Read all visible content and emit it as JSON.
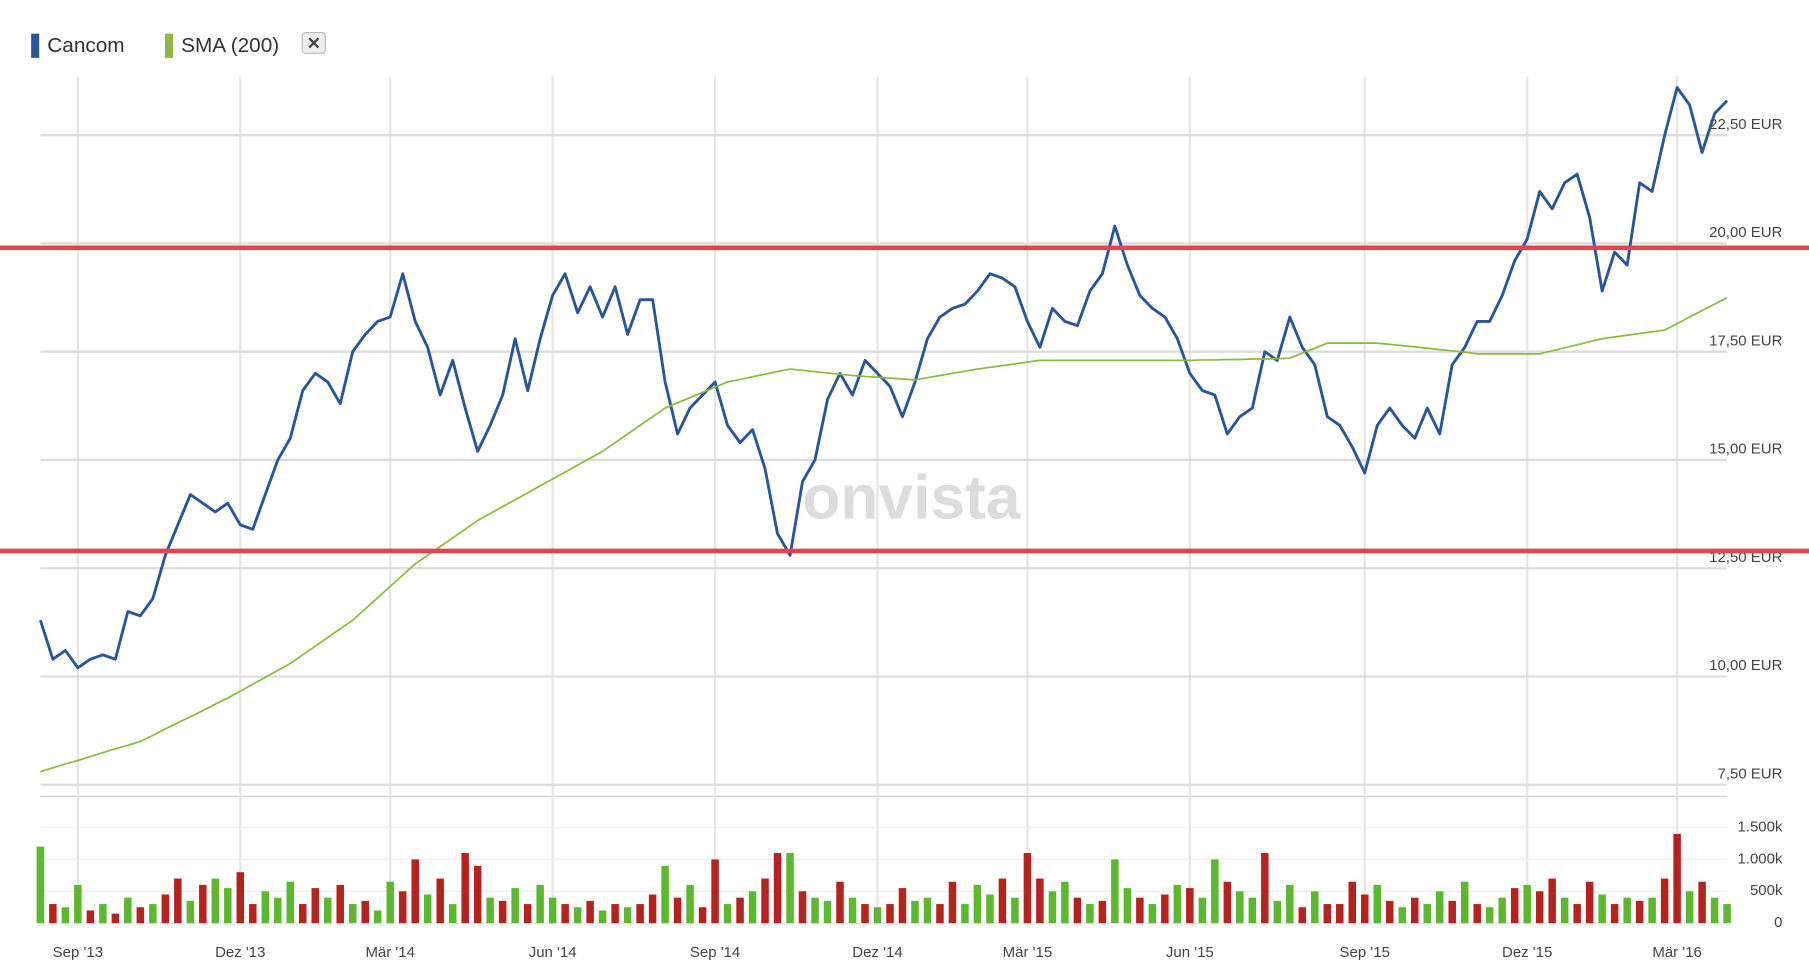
{
  "chart_data": [
    {
      "type": "line",
      "categories": [
        null,
        null,
        null,
        "Sep '13",
        null,
        null,
        null,
        null,
        null,
        null,
        null,
        null,
        null,
        null,
        null,
        null,
        "Dez '13",
        null,
        null,
        null,
        null,
        null,
        null,
        null,
        null,
        null,
        null,
        null,
        "Mär '14",
        null,
        null,
        null,
        null,
        null,
        null,
        null,
        null,
        null,
        null,
        null,
        null,
        "Jun '14",
        null,
        null,
        null,
        null,
        null,
        null,
        null,
        null,
        null,
        null,
        null,
        null,
        "Sep '14",
        null,
        null,
        null,
        null,
        null,
        null,
        null,
        null,
        null,
        null,
        null,
        null,
        "Dez '14",
        null,
        null,
        null,
        null,
        null,
        null,
        null,
        null,
        null,
        null,
        null,
        "Mär '15",
        null,
        null,
        null,
        null,
        null,
        null,
        null,
        null,
        null,
        null,
        null,
        null,
        "Jun '15",
        null,
        null,
        null,
        null,
        null,
        null,
        null,
        null,
        null,
        null,
        null,
        null,
        null,
        "Sep '15",
        null,
        null,
        null,
        null,
        null,
        null,
        null,
        null,
        null,
        null,
        null,
        null,
        "Dez '15",
        null,
        null,
        null,
        null,
        null,
        null,
        null,
        null,
        null,
        null,
        null,
        "Mär '16",
        null,
        null,
        null,
        null
      ],
      "series": [
        {
          "name": "Cancom",
          "color": "#2a5597",
          "values": [
            11.3,
            10.4,
            10.6,
            10.2,
            10.4,
            10.5,
            10.4,
            11.5,
            11.4,
            11.8,
            12.8,
            13.5,
            14.2,
            14.0,
            13.8,
            14.0,
            13.5,
            13.4,
            14.2,
            15.0,
            15.5,
            16.6,
            17.0,
            16.8,
            16.3,
            17.5,
            17.9,
            18.2,
            18.3,
            19.3,
            18.2,
            17.6,
            16.5,
            17.3,
            16.2,
            15.2,
            15.8,
            16.5,
            17.8,
            16.6,
            17.8,
            18.8,
            19.3,
            18.4,
            19.0,
            18.3,
            19.0,
            17.9,
            18.7,
            18.7,
            16.8,
            15.6,
            16.2,
            16.5,
            16.8,
            15.8,
            15.4,
            15.7,
            14.8,
            13.3,
            12.8,
            14.5,
            15.0,
            16.4,
            17.0,
            16.5,
            17.3,
            17.0,
            16.7,
            16.0,
            16.8,
            17.8,
            18.3,
            18.5,
            18.6,
            18.9,
            19.3,
            19.2,
            19.0,
            18.2,
            17.6,
            18.5,
            18.2,
            18.1,
            18.9,
            19.3,
            20.4,
            19.5,
            18.8,
            18.5,
            18.3,
            17.8,
            17.0,
            16.6,
            16.5,
            15.6,
            16.0,
            16.2,
            17.5,
            17.3,
            18.3,
            17.6,
            17.2,
            16.0,
            15.8,
            15.3,
            14.7,
            15.8,
            16.2,
            15.8,
            15.5,
            16.2,
            15.6,
            17.2,
            17.6,
            18.2,
            18.2,
            18.8,
            19.6,
            20.1,
            21.2,
            20.8,
            21.4,
            21.6,
            20.6,
            18.9,
            19.8,
            19.5,
            21.4,
            21.2,
            22.5,
            23.6,
            23.2,
            22.1,
            23.0,
            23.3
          ]
        },
        {
          "name": "SMA (200)",
          "color": "#8cba3f",
          "values": [
            7.8,
            7.89,
            7.98,
            8.06,
            8.15,
            8.24,
            8.33,
            8.41,
            8.5,
            8.64,
            8.79,
            8.93,
            9.07,
            9.21,
            9.36,
            9.5,
            9.66,
            9.82,
            9.98,
            10.14,
            10.3,
            10.5,
            10.7,
            10.9,
            11.1,
            11.3,
            11.56,
            11.82,
            12.08,
            12.34,
            12.6,
            12.8,
            13.0,
            13.2,
            13.4,
            13.6,
            13.76,
            13.92,
            14.08,
            14.24,
            14.4,
            14.56,
            14.72,
            14.88,
            15.04,
            15.2,
            15.4,
            15.6,
            15.8,
            16.0,
            16.2,
            16.32,
            16.44,
            16.56,
            16.68,
            16.8,
            16.86,
            16.92,
            16.98,
            17.04,
            17.1,
            17.07,
            17.04,
            17.01,
            16.98,
            16.95,
            16.93,
            16.91,
            16.89,
            16.87,
            16.85,
            16.9,
            16.95,
            17.0,
            17.05,
            17.1,
            17.14,
            17.18,
            17.22,
            17.26,
            17.3,
            17.3,
            17.3,
            17.3,
            17.3,
            17.3,
            17.3,
            17.3,
            17.3,
            17.3,
            17.3,
            17.3,
            17.3,
            17.31,
            17.31,
            17.32,
            17.32,
            17.33,
            17.33,
            17.34,
            17.35,
            17.47,
            17.58,
            17.7,
            17.7,
            17.7,
            17.7,
            17.7,
            17.67,
            17.64,
            17.61,
            17.58,
            17.55,
            17.52,
            17.49,
            17.45,
            17.45,
            17.45,
            17.45,
            17.45,
            17.45,
            17.52,
            17.59,
            17.66,
            17.73,
            17.8,
            17.84,
            17.88,
            17.92,
            17.96,
            18.0,
            18.15,
            18.3,
            18.45,
            18.6,
            18.75
          ]
        }
      ],
      "ylim": [
        7.5,
        24
      ],
      "yticks": [
        {
          "value": 7.5,
          "label": "7,50 EUR"
        },
        {
          "value": 10,
          "label": "10,00 EUR"
        },
        {
          "value": 12.5,
          "label": "12,50 EUR"
        },
        {
          "value": 15,
          "label": "15,00 EUR"
        },
        {
          "value": 17.5,
          "label": "17,50 EUR"
        },
        {
          "value": 20,
          "label": "20,00 EUR"
        },
        {
          "value": 22.5,
          "label": "22,50 EUR"
        }
      ],
      "hlines": [
        {
          "value": 19.9,
          "color": "#e0464e"
        },
        {
          "value": 12.9,
          "color": "#e0464e"
        }
      ],
      "watermark": "onvista",
      "grid": true
    },
    {
      "type": "bar",
      "values": [
        1200,
        300,
        250,
        600,
        200,
        300,
        150,
        400,
        250,
        300,
        450,
        700,
        350,
        600,
        700,
        550,
        800,
        300,
        500,
        400,
        650,
        300,
        550,
        400,
        600,
        300,
        350,
        200,
        650,
        500,
        1000,
        450,
        700,
        300,
        1100,
        900,
        400,
        350,
        550,
        300,
        600,
        400,
        300,
        250,
        350,
        200,
        300,
        250,
        300,
        450,
        900,
        400,
        600,
        250,
        1000,
        300,
        400,
        500,
        700,
        1100,
        1100,
        500,
        400,
        350,
        650,
        400,
        300,
        250,
        300,
        550,
        350,
        400,
        300,
        650,
        300,
        600,
        450,
        700,
        400,
        1100,
        700,
        500,
        650,
        400,
        300,
        350,
        1000,
        550,
        400,
        300,
        450,
        600,
        550,
        400,
        1000,
        650,
        500,
        400,
        1100,
        350,
        600,
        250,
        500,
        300,
        300,
        650,
        450,
        600,
        350,
        250,
        400,
        300,
        500,
        350,
        650,
        300,
        250,
        400,
        550,
        600,
        500,
        700,
        400,
        300,
        650,
        450,
        300,
        400,
        350,
        400,
        700,
        1400,
        500,
        650,
        400,
        300
      ],
      "colors": [
        "#5cb82e",
        "#b5231f",
        "#5cb82e",
        "#5cb82e",
        "#b5231f",
        "#5cb82e",
        "#b5231f",
        "#5cb82e",
        "#b5231f",
        "#5cb82e",
        "#b5231f",
        "#b5231f",
        "#5cb82e",
        "#b5231f",
        "#5cb82e",
        "#5cb82e",
        "#b5231f",
        "#b5231f",
        "#5cb82e",
        "#5cb82e",
        "#5cb82e",
        "#b5231f",
        "#b5231f",
        "#5cb82e",
        "#b5231f",
        "#5cb82e",
        "#b5231f",
        "#5cb82e",
        "#5cb82e",
        "#b5231f",
        "#b5231f",
        "#5cb82e",
        "#b5231f",
        "#5cb82e",
        "#b5231f",
        "#b5231f",
        "#5cb82e",
        "#b5231f",
        "#5cb82e",
        "#b5231f",
        "#5cb82e",
        "#5cb82e",
        "#b5231f",
        "#5cb82e",
        "#b5231f",
        "#5cb82e",
        "#b5231f",
        "#5cb82e",
        "#b5231f",
        "#b5231f",
        "#5cb82e",
        "#b5231f",
        "#5cb82e",
        "#b5231f",
        "#b5231f",
        "#5cb82e",
        "#b5231f",
        "#5cb82e",
        "#b5231f",
        "#b5231f",
        "#5cb82e",
        "#b5231f",
        "#5cb82e",
        "#5cb82e",
        "#b5231f",
        "#5cb82e",
        "#b5231f",
        "#5cb82e",
        "#b5231f",
        "#b5231f",
        "#5cb82e",
        "#5cb82e",
        "#b5231f",
        "#b5231f",
        "#5cb82e",
        "#5cb82e",
        "#5cb82e",
        "#b5231f",
        "#5cb82e",
        "#b5231f",
        "#b5231f",
        "#5cb82e",
        "#5cb82e",
        "#b5231f",
        "#5cb82e",
        "#b5231f",
        "#5cb82e",
        "#5cb82e",
        "#b5231f",
        "#5cb82e",
        "#b5231f",
        "#5cb82e",
        "#b5231f",
        "#5cb82e",
        "#5cb82e",
        "#b5231f",
        "#5cb82e",
        "#5cb82e",
        "#b5231f",
        "#5cb82e",
        "#5cb82e",
        "#b5231f",
        "#5cb82e",
        "#b5231f",
        "#b5231f",
        "#b5231f",
        "#b5231f",
        "#5cb82e",
        "#b5231f",
        "#5cb82e",
        "#b5231f",
        "#5cb82e",
        "#5cb82e",
        "#b5231f",
        "#5cb82e",
        "#b5231f",
        "#5cb82e",
        "#5cb82e",
        "#b5231f",
        "#5cb82e",
        "#b5231f",
        "#b5231f",
        "#5cb82e",
        "#b5231f",
        "#b5231f",
        "#5cb82e",
        "#b5231f",
        "#5cb82e",
        "#b5231f",
        "#5cb82e",
        "#b5231f",
        "#b5231f",
        "#5cb82e",
        "#b5231f",
        "#5cb82e",
        "#5cb82e"
      ],
      "ylim": [
        0,
        1900
      ],
      "yticks": [
        0,
        {
          "value": 500,
          "label": "500k"
        },
        {
          "value": 1000,
          "label": "1.000k"
        },
        {
          "value": 1500,
          "label": "1.500k"
        }
      ],
      "grid": true
    }
  ]
}
